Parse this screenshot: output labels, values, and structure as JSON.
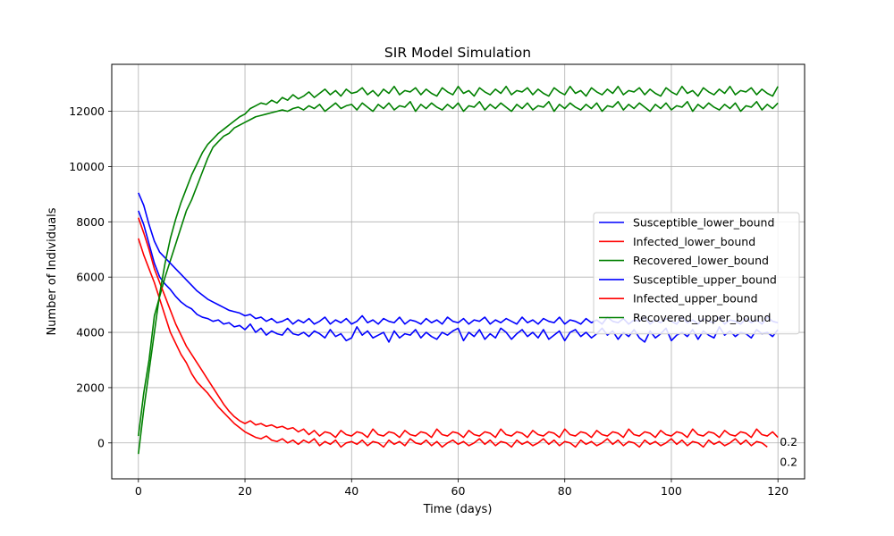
{
  "chart_data": {
    "type": "line",
    "title": "SIR Model Simulation",
    "xlabel": "Time (days)",
    "ylabel": "Number of Individuals",
    "xlim": [
      -5,
      125
    ],
    "ylim": [
      -1300,
      13700
    ],
    "x_ticks": [
      0,
      20,
      40,
      60,
      80,
      100,
      120
    ],
    "y_ticks": [
      0,
      2000,
      4000,
      6000,
      8000,
      10000,
      12000
    ],
    "grid": true,
    "legend_position": "center-right",
    "annotations": [
      {
        "text": "0.2",
        "x": 120,
        "y": 30
      },
      {
        "text": "0.2",
        "x": 120,
        "y": -700
      }
    ],
    "series": [
      {
        "name": "Susceptible_lower_bound",
        "color": "#0000ff",
        "dx": 1,
        "x0": 0,
        "values": [
          8400,
          7900,
          7200,
          6500,
          6000,
          5750,
          5550,
          5300,
          5100,
          4950,
          4850,
          4650,
          4550,
          4500,
          4400,
          4450,
          4300,
          4350,
          4200,
          4250,
          4100,
          4300,
          4000,
          4150,
          3900,
          4050,
          3950,
          3900,
          4150,
          3950,
          3900,
          4000,
          3850,
          4050,
          3950,
          3800,
          4100,
          3850,
          3950,
          3700,
          3800,
          4200,
          3900,
          4050,
          3800,
          3900,
          4000,
          3650,
          4050,
          3800,
          3950,
          3900,
          4100,
          3800,
          4000,
          3850,
          3750,
          4000,
          3900,
          4050,
          4150,
          3700,
          4000,
          3850,
          4100,
          3750,
          3950,
          3800,
          4150,
          4000,
          3750,
          3950,
          4100,
          3850,
          4000,
          3800,
          4100,
          3750,
          3900,
          4050,
          3700,
          4000,
          4100,
          3850,
          4000,
          3800,
          3950,
          4150,
          3900,
          4050,
          3750,
          4000,
          3850,
          4100,
          3800,
          3650,
          4050,
          3800,
          3950,
          4150,
          3700,
          3900,
          4000,
          3850,
          4100,
          3750,
          4050,
          3900,
          3800,
          4200,
          3900,
          4050,
          3850,
          4000,
          3950,
          3800,
          4100,
          3950,
          4000,
          3850,
          4100
        ]
      },
      {
        "name": "Infected_lower_bound",
        "color": "#ff0000",
        "dx": 1,
        "x0": 0,
        "values": [
          7400,
          6800,
          6300,
          5800,
          5200,
          4600,
          4000,
          3600,
          3200,
          2900,
          2500,
          2200,
          2000,
          1800,
          1550,
          1300,
          1100,
          900,
          700,
          550,
          400,
          300,
          200,
          150,
          250,
          100,
          50,
          150,
          0,
          100,
          -50,
          100,
          0,
          150,
          -100,
          50,
          -50,
          100,
          -150,
          0,
          50,
          -50,
          100,
          -100,
          50,
          0,
          -150,
          100,
          -50,
          50,
          -100,
          150,
          0,
          -50,
          100,
          -100,
          50,
          -150,
          0,
          100,
          -50,
          50,
          -100,
          0,
          150,
          -50,
          100,
          -100,
          50,
          0,
          -150,
          100,
          -50,
          50,
          -100,
          0,
          150,
          -50,
          100,
          -100,
          50,
          0,
          -150,
          100,
          -50,
          50,
          -100,
          0,
          150,
          -50,
          100,
          -100,
          50,
          0,
          -150,
          100,
          -50,
          50,
          -100,
          0,
          150,
          -50,
          100,
          -100,
          50,
          0,
          -150,
          100,
          -50,
          50,
          -100,
          0,
          150,
          -50,
          100,
          -100,
          50,
          0,
          -150
        ]
      },
      {
        "name": "Recovered_lower_bound",
        "color": "#008000",
        "dx": 1,
        "x0": 0,
        "values": [
          250,
          1800,
          3000,
          4600,
          5300,
          6000,
          6600,
          7200,
          7800,
          8400,
          8800,
          9300,
          9800,
          10300,
          10700,
          10900,
          11100,
          11200,
          11400,
          11500,
          11600,
          11700,
          11800,
          11850,
          11900,
          11950,
          12000,
          12050,
          12000,
          12100,
          12150,
          12050,
          12200,
          12100,
          12250,
          12000,
          12150,
          12300,
          12100,
          12200,
          12250,
          12050,
          12300,
          12150,
          12000,
          12250,
          12100,
          12300,
          12050,
          12200,
          12150,
          12350,
          12000,
          12250,
          12100,
          12300,
          12150,
          12050,
          12250,
          12100,
          12300,
          12000,
          12200,
          12150,
          12350,
          12050,
          12250,
          12100,
          12300,
          12150,
          12000,
          12250,
          12100,
          12300,
          12050,
          12200,
          12150,
          12350,
          12000,
          12250,
          12100,
          12300,
          12150,
          12050,
          12250,
          12100,
          12300,
          12000,
          12200,
          12150,
          12350,
          12050,
          12250,
          12100,
          12300,
          12150,
          12000,
          12250,
          12100,
          12300,
          12050,
          12200,
          12150,
          12350,
          12000,
          12250,
          12100,
          12300,
          12150,
          12050,
          12250,
          12100,
          12300,
          12000,
          12200,
          12150,
          12350,
          12050,
          12250,
          12100,
          12300
        ]
      },
      {
        "name": "Susceptible_upper_bound",
        "color": "#0000ff",
        "dx": 1,
        "x0": 0,
        "values": [
          9050,
          8600,
          7900,
          7300,
          6900,
          6700,
          6500,
          6300,
          6100,
          5900,
          5700,
          5500,
          5350,
          5200,
          5100,
          5000,
          4900,
          4800,
          4750,
          4700,
          4600,
          4650,
          4500,
          4550,
          4400,
          4500,
          4350,
          4400,
          4500,
          4300,
          4450,
          4350,
          4500,
          4300,
          4400,
          4550,
          4300,
          4450,
          4350,
          4500,
          4300,
          4400,
          4600,
          4350,
          4450,
          4300,
          4500,
          4400,
          4350,
          4550,
          4300,
          4450,
          4400,
          4300,
          4500,
          4350,
          4450,
          4300,
          4550,
          4400,
          4350,
          4500,
          4300,
          4450,
          4400,
          4550,
          4300,
          4450,
          4350,
          4500,
          4400,
          4300,
          4550,
          4350,
          4450,
          4300,
          4500,
          4400,
          4350,
          4550,
          4300,
          4450,
          4400,
          4300,
          4500,
          4350,
          4450,
          4300,
          4550,
          4400,
          4350,
          4500,
          4300,
          4450,
          4400,
          4550,
          4300,
          4450,
          4350,
          4500,
          4400,
          4300,
          4550,
          4350,
          4450,
          4300,
          4500,
          4400,
          4350,
          4550,
          4300,
          4450,
          4400,
          4300,
          4500,
          4350,
          4450,
          4300,
          4550,
          4400,
          4350
        ]
      },
      {
        "name": "Infected_upper_bound",
        "color": "#ff0000",
        "dx": 1,
        "x0": 0,
        "values": [
          8150,
          7600,
          7000,
          6300,
          5800,
          5300,
          4800,
          4300,
          3900,
          3500,
          3200,
          2900,
          2600,
          2300,
          2000,
          1700,
          1400,
          1150,
          950,
          800,
          700,
          800,
          650,
          700,
          600,
          650,
          550,
          600,
          500,
          550,
          400,
          500,
          300,
          450,
          250,
          400,
          350,
          200,
          450,
          300,
          250,
          400,
          350,
          200,
          500,
          300,
          250,
          400,
          350,
          200,
          450,
          300,
          250,
          400,
          350,
          200,
          500,
          300,
          250,
          400,
          350,
          200,
          450,
          300,
          250,
          400,
          350,
          200,
          500,
          300,
          250,
          400,
          350,
          200,
          450,
          300,
          250,
          400,
          350,
          200,
          500,
          300,
          250,
          400,
          350,
          200,
          450,
          300,
          250,
          400,
          350,
          200,
          500,
          300,
          250,
          400,
          350,
          200,
          450,
          300,
          250,
          400,
          350,
          200,
          500,
          300,
          250,
          400,
          350,
          200,
          450,
          300,
          250,
          400,
          350,
          200,
          500,
          300,
          250,
          400,
          200
        ]
      },
      {
        "name": "Recovered_upper_bound",
        "color": "#008000",
        "dx": 1,
        "x0": 0,
        "values": [
          -400,
          1200,
          2600,
          4000,
          5400,
          6500,
          7400,
          8100,
          8700,
          9200,
          9700,
          10100,
          10500,
          10800,
          11000,
          11200,
          11350,
          11500,
          11650,
          11800,
          11900,
          12100,
          12200,
          12300,
          12250,
          12400,
          12300,
          12500,
          12400,
          12600,
          12450,
          12550,
          12700,
          12500,
          12650,
          12800,
          12600,
          12750,
          12550,
          12800,
          12650,
          12700,
          12850,
          12600,
          12750,
          12550,
          12800,
          12650,
          12900,
          12600,
          12750,
          12700,
          12850,
          12600,
          12800,
          12650,
          12550,
          12850,
          12700,
          12600,
          12900,
          12650,
          12750,
          12550,
          12850,
          12700,
          12600,
          12800,
          12650,
          12900,
          12600,
          12750,
          12700,
          12850,
          12600,
          12800,
          12650,
          12550,
          12850,
          12700,
          12600,
          12900,
          12650,
          12750,
          12550,
          12850,
          12700,
          12600,
          12800,
          12650,
          12900,
          12600,
          12750,
          12700,
          12850,
          12600,
          12800,
          12650,
          12550,
          12850,
          12700,
          12600,
          12900,
          12650,
          12750,
          12550,
          12850,
          12700,
          12600,
          12800,
          12650,
          12900,
          12600,
          12750,
          12700,
          12850,
          12600,
          12800,
          12650,
          12550,
          12900
        ]
      }
    ]
  }
}
